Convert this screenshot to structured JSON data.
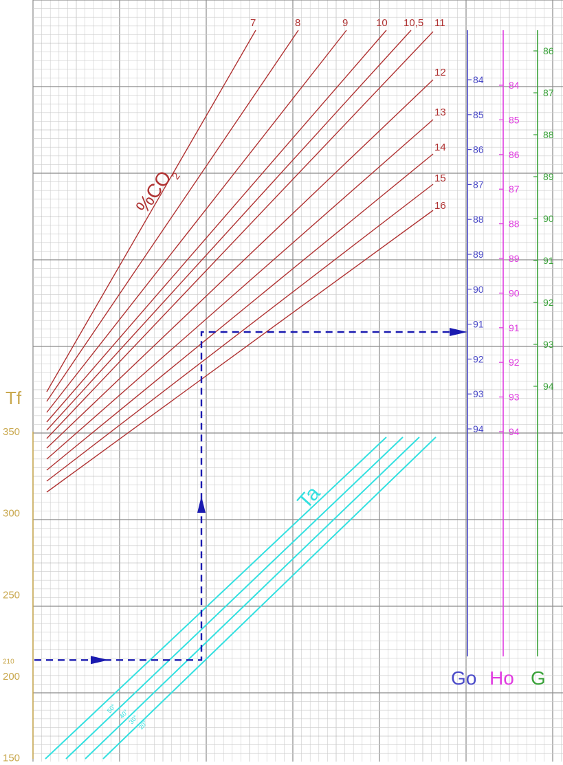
{
  "chart_data": {
    "type": "line",
    "title": "",
    "colors": {
      "co2": "#b03333",
      "ta": "#33e0e0",
      "go": "#4a4ac8",
      "ho": "#e03ce0",
      "g": "#3aa23a",
      "tf": "#c9a84e",
      "arrow": "#1a1ab0",
      "grid_minor": "#cccccc",
      "grid_major": "#8a8a8a"
    },
    "tf_axis": {
      "label": "Tf",
      "ticks": [
        {
          "value": 350,
          "label": "350"
        },
        {
          "value": 300,
          "label": "300"
        },
        {
          "value": 250,
          "label": "250"
        },
        {
          "value": 210,
          "label": "210"
        },
        {
          "value": 200,
          "label": "200"
        },
        {
          "value": 150,
          "label": "150"
        }
      ]
    },
    "co2_title": "%CO",
    "co2_title_sub": "2",
    "co2_lines": [
      {
        "label": "7"
      },
      {
        "label": "8"
      },
      {
        "label": "9"
      },
      {
        "label": "10"
      },
      {
        "label": "10,5"
      },
      {
        "label": "11"
      },
      {
        "label": "12"
      },
      {
        "label": "13"
      },
      {
        "label": "14"
      },
      {
        "label": "15"
      },
      {
        "label": "16"
      }
    ],
    "ta_title": "Ta",
    "ta_lines": [
      {
        "label": "50°"
      },
      {
        "label": "40°"
      },
      {
        "label": "30°"
      },
      {
        "label": "20°"
      }
    ],
    "scales": [
      {
        "name": "Go",
        "values": [
          "84",
          "85",
          "86",
          "87",
          "88",
          "89",
          "90",
          "91",
          "92",
          "93",
          "94"
        ]
      },
      {
        "name": "Ho",
        "values": [
          "84",
          "85",
          "86",
          "87",
          "88",
          "89",
          "90",
          "91",
          "92",
          "93",
          "94"
        ]
      },
      {
        "name": "G",
        "values": [
          "86",
          "87",
          "88",
          "89",
          "90",
          "91",
          "92",
          "93",
          "94"
        ]
      }
    ],
    "example": {
      "tf": 210,
      "result_go": 91.3
    }
  }
}
